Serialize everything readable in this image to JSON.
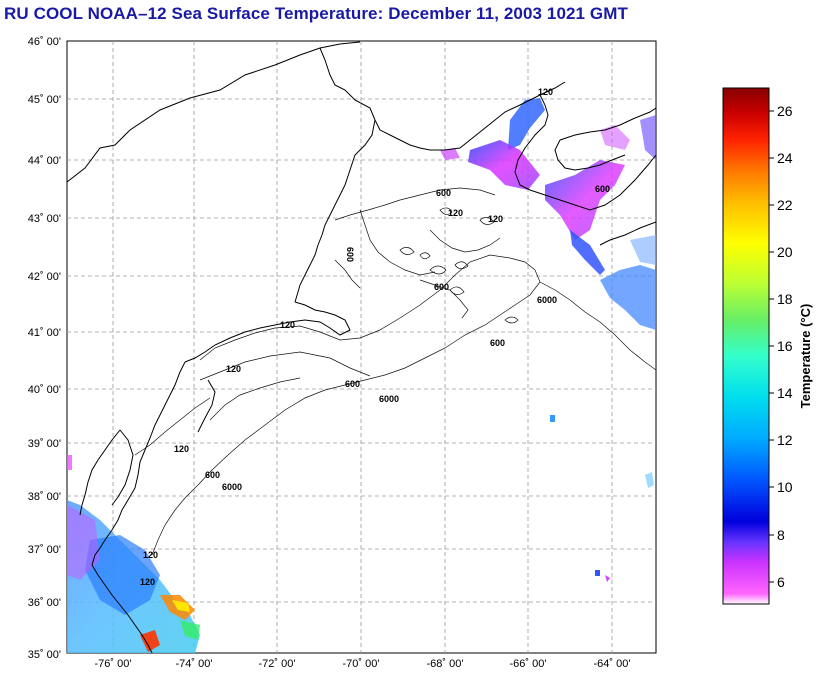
{
  "title": "RU COOL  NOAA–12  Sea Surface Temperature:  December 11, 2003 1021 GMT",
  "axes": {
    "lat_labels": [
      "46˚ 00'",
      "45˚ 00'",
      "44˚ 00'",
      "43˚ 00'",
      "42˚ 00'",
      "41˚ 00'",
      "40˚ 00'",
      "39˚ 00'",
      "38˚ 00'",
      "37˚ 00'",
      "36˚ 00'",
      "35˚ 00'"
    ],
    "lon_labels": [
      "-76˚ 00'",
      "-74˚ 00'",
      "-72˚ 00'",
      "-70˚ 00'",
      "-68˚ 00'",
      "-66˚ 00'",
      "-64˚ 00'"
    ]
  },
  "colorbar": {
    "label": "Temperature (°C)",
    "ticks": [
      "26",
      "24",
      "22",
      "20",
      "18",
      "16",
      "14",
      "12",
      "10",
      "8",
      "6"
    ]
  },
  "contours": {
    "labels": [
      "120",
      "120",
      "120",
      "120",
      "120",
      "120",
      "600",
      "600",
      "600",
      "600",
      "600",
      "600",
      "600",
      "6000",
      "6000",
      "6000",
      "120",
      "120"
    ]
  }
}
